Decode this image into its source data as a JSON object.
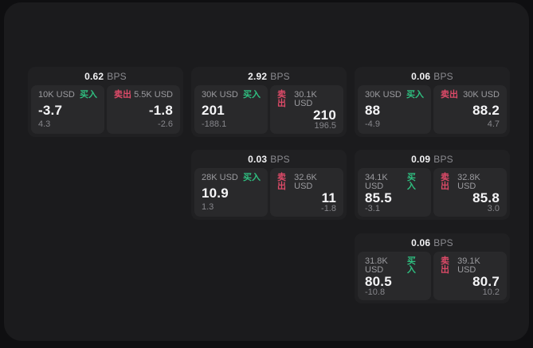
{
  "labels": {
    "bps_unit": "BPS",
    "buy": "买入",
    "sell": "卖出"
  },
  "colors": {
    "page_background": "#0f0f11",
    "window_background": "#1b1b1d",
    "card_background": "#202022",
    "tile_background": "#29292b",
    "buy_green": "#2fbf80",
    "sell_red": "#dd4a68",
    "primary_text": "#f5f5f7",
    "muted_text": "#9b9b9f"
  },
  "cards": [
    {
      "bps": "0.62",
      "buy": {
        "size": "10K USD",
        "main": "-3.7",
        "sub": "4.3"
      },
      "sell": {
        "size": "5.5K USD",
        "main": "-1.8",
        "sub": "-2.6"
      }
    },
    {
      "bps": "2.92",
      "buy": {
        "size": "30K USD",
        "main": "201",
        "sub": "-188.1"
      },
      "sell": {
        "size": "30.1K USD",
        "main": "210",
        "sub": "196.5"
      }
    },
    {
      "bps": "0.06",
      "buy": {
        "size": "30K USD",
        "main": "88",
        "sub": "-4.9"
      },
      "sell": {
        "size": "30K USD",
        "main": "88.2",
        "sub": "4.7"
      }
    },
    {
      "bps": "0.03",
      "buy": {
        "size": "28K USD",
        "main": "10.9",
        "sub": "1.3"
      },
      "sell": {
        "size": "32.6K USD",
        "main": "11",
        "sub": "-1.8"
      }
    },
    {
      "bps": "0.09",
      "buy": {
        "size": "34.1K USD",
        "main": "85.5",
        "sub": "-3.1"
      },
      "sell": {
        "size": "32.8K USD",
        "main": "85.8",
        "sub": "3.0"
      }
    },
    {
      "bps": "0.06",
      "buy": {
        "size": "31.8K USD",
        "main": "80.5",
        "sub": "-10.8"
      },
      "sell": {
        "size": "39.1K USD",
        "main": "80.7",
        "sub": "10.2"
      }
    }
  ]
}
